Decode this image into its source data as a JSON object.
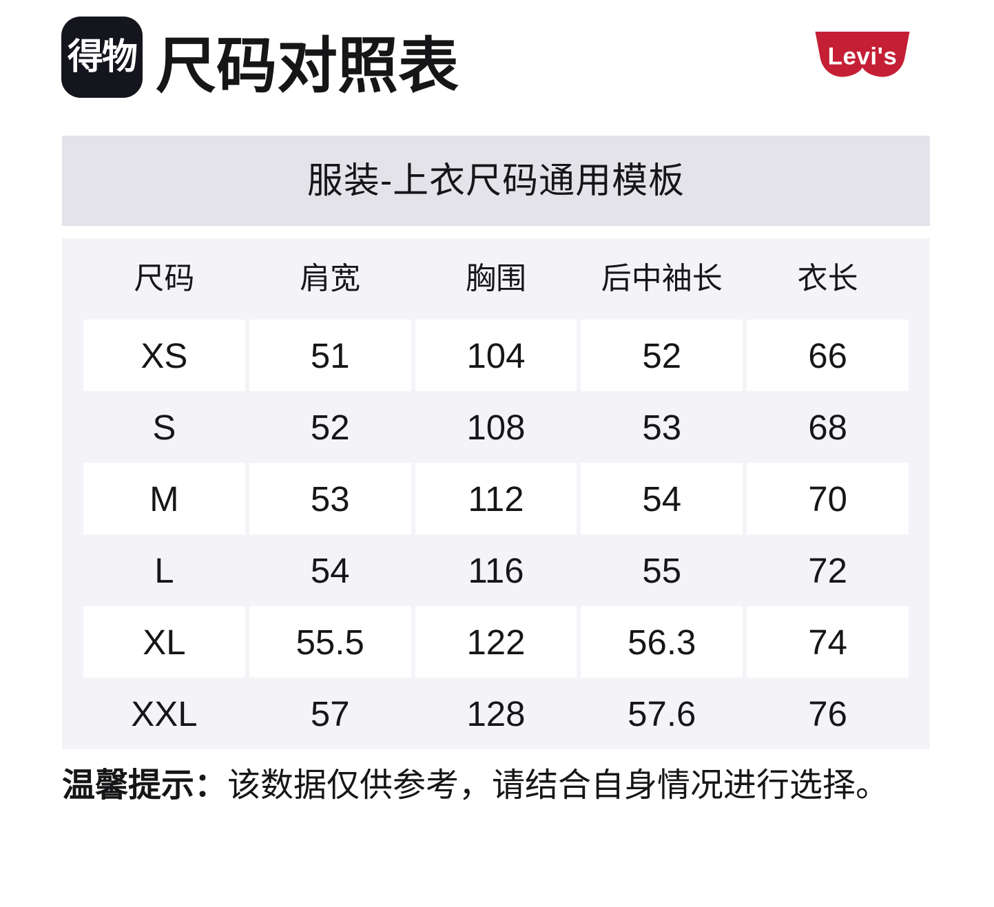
{
  "header": {
    "logo_text": "得物",
    "title": "尺码对照表",
    "brand": "Levi's"
  },
  "banner": {
    "title": "服装-上衣尺码通用模板"
  },
  "table": {
    "columns": [
      "尺码",
      "肩宽",
      "胸围",
      "后中袖长",
      "衣长"
    ],
    "rows": [
      {
        "size": "XS",
        "values": [
          "51",
          "104",
          "52",
          "66"
        ]
      },
      {
        "size": "S",
        "values": [
          "52",
          "108",
          "53",
          "68"
        ]
      },
      {
        "size": "M",
        "values": [
          "53",
          "112",
          "54",
          "70"
        ]
      },
      {
        "size": "L",
        "values": [
          "54",
          "116",
          "55",
          "72"
        ]
      },
      {
        "size": "XL",
        "values": [
          "55.5",
          "122",
          "56.3",
          "74"
        ]
      },
      {
        "size": "XXL",
        "values": [
          "57",
          "128",
          "57.6",
          "76"
        ]
      }
    ]
  },
  "note": {
    "label": "温馨提示：",
    "text": "该数据仅供参考，请结合自身情况进行选择。"
  },
  "colors": {
    "brand_red": "#C41F35",
    "logo_black": "#15151D",
    "banner_bg": "#E4E3E9",
    "table_bg": "#F4F4F8",
    "text_primary": "#161618"
  }
}
